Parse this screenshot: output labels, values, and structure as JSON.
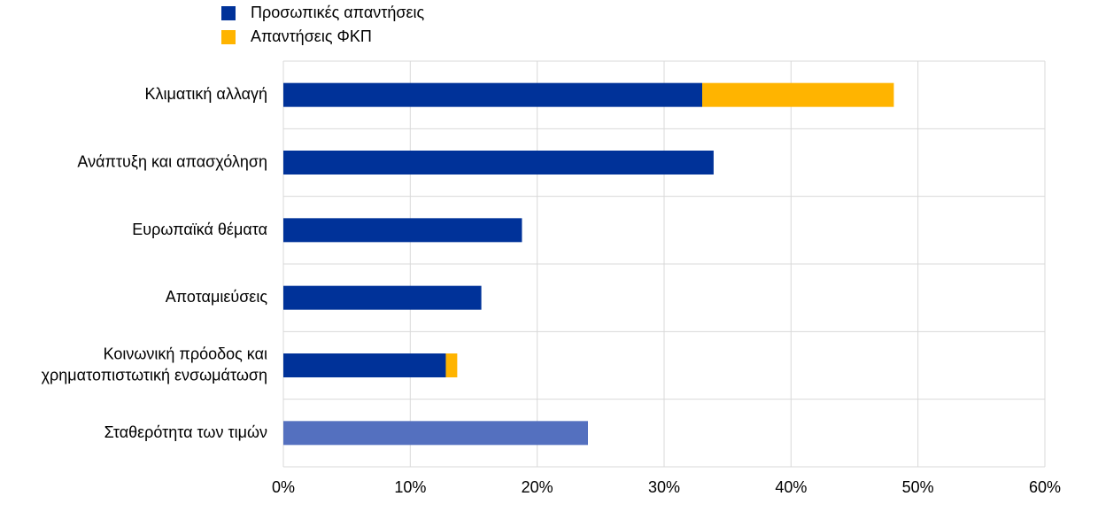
{
  "chart_data": {
    "type": "stacked-bar-horizontal",
    "categories": [
      "Κλιματική αλλαγή",
      "Ανάπτυξη και απασχόληση",
      "Ευρωπαϊκά θέματα",
      "Αποταμιεύσεις",
      "Κοινωνική πρόοδος και\nχρηματοπιστωτική ενσωμάτωση",
      "Σταθερότητα των τιμών"
    ],
    "series": [
      {
        "name": "Προσωπικές απαντήσεις",
        "color": "#003299",
        "values": [
          33.0,
          33.9,
          18.8,
          15.6,
          12.8,
          24.0
        ],
        "colors": [
          "#003299",
          "#003299",
          "#003299",
          "#003299",
          "#003299",
          "#5470bf"
        ]
      },
      {
        "name": "Απαντήσεις ΦΚΠ",
        "color": "#ffb400",
        "values": [
          15.1,
          null,
          null,
          null,
          0.9,
          null
        ]
      }
    ],
    "xlim": [
      0,
      60
    ],
    "xticks": [
      {
        "value": 0,
        "label": "0%"
      },
      {
        "value": 10,
        "label": "10%"
      },
      {
        "value": 20,
        "label": "20%"
      },
      {
        "value": 30,
        "label": "30%"
      },
      {
        "value": 40,
        "label": "40%"
      },
      {
        "value": 50,
        "label": "50%"
      },
      {
        "value": 60,
        "label": "60%"
      }
    ],
    "grid": true,
    "legend": "top"
  }
}
